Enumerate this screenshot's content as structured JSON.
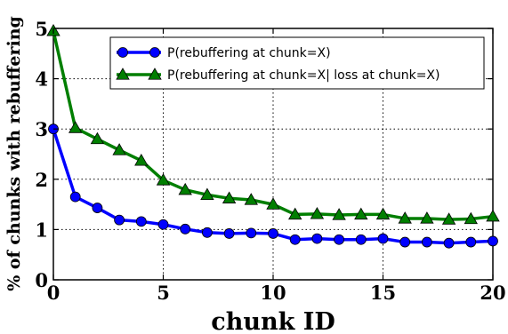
{
  "chart_data": {
    "type": "line",
    "xlabel": "chunk ID",
    "ylabel": "% of chunks with rebuffering",
    "xlim": [
      0,
      20
    ],
    "ylim": [
      0,
      5
    ],
    "xticks": [
      "0",
      "5",
      "10",
      "15",
      "20"
    ],
    "yticks": [
      "0",
      "1",
      "2",
      "3",
      "4",
      "5"
    ],
    "grid": true,
    "legend_position": "top-right",
    "x": [
      0,
      1,
      2,
      3,
      4,
      5,
      6,
      7,
      8,
      9,
      10,
      11,
      12,
      13,
      14,
      15,
      16,
      17,
      18,
      19,
      20
    ],
    "series": [
      {
        "name": "P(rebuffering at chunk=X)",
        "color": "#0000ff",
        "marker": "circle",
        "values": [
          3.0,
          1.65,
          1.43,
          1.19,
          1.16,
          1.1,
          1.01,
          0.94,
          0.92,
          0.93,
          0.92,
          0.8,
          0.82,
          0.8,
          0.8,
          0.82,
          0.75,
          0.75,
          0.73,
          0.75,
          0.77
        ]
      },
      {
        "name": "P(rebuffering at chunk=X| loss at chunk=X)",
        "color": "#007f00",
        "marker": "triangle",
        "values": [
          4.95,
          3.02,
          2.8,
          2.58,
          2.37,
          1.98,
          1.79,
          1.69,
          1.62,
          1.59,
          1.5,
          1.3,
          1.31,
          1.29,
          1.3,
          1.3,
          1.22,
          1.22,
          1.2,
          1.21,
          1.26
        ]
      }
    ]
  }
}
